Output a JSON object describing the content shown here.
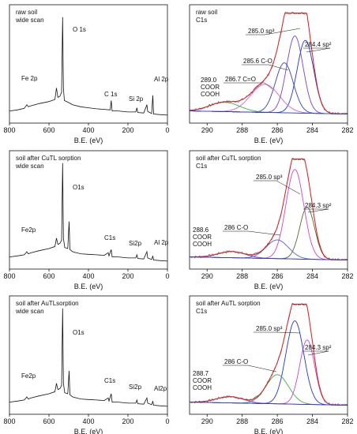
{
  "chart_data": [
    {
      "type": "line",
      "title": [
        "raw soil",
        "wide scan"
      ],
      "xlabel": "B.E. (eV)",
      "xlim": [
        800,
        0
      ],
      "x_ticks": [
        800,
        600,
        400,
        200,
        0
      ],
      "y_ticks": false,
      "annotations": [
        {
          "text": "O 1s",
          "x": 531
        },
        {
          "text": "Fe 2p",
          "x": 710
        },
        {
          "text": "C 1s",
          "x": 285
        },
        {
          "text": "Si 2p",
          "x": 102
        },
        {
          "text": "Al 2p",
          "x": 74
        }
      ],
      "series": [
        {
          "color": "#111111",
          "values": [
            [
              800,
              0.06
            ],
            [
              760,
              0.07
            ],
            [
              725,
              0.085
            ],
            [
              712,
              0.12
            ],
            [
              705,
              0.1
            ],
            [
              690,
              0.11
            ],
            [
              650,
              0.13
            ],
            [
              600,
              0.15
            ],
            [
              570,
              0.17
            ],
            [
              562,
              0.28
            ],
            [
              555,
              0.19
            ],
            [
              545,
              0.2
            ],
            [
              536,
              0.24
            ],
            [
              531,
              0.96
            ],
            [
              527,
              0.28
            ],
            [
              522,
              0.16
            ],
            [
              500,
              0.14
            ],
            [
              480,
              0.12
            ],
            [
              440,
              0.1
            ],
            [
              400,
              0.09
            ],
            [
              360,
              0.08
            ],
            [
              320,
              0.075
            ],
            [
              290,
              0.07
            ],
            [
              285,
              0.16
            ],
            [
              280,
              0.06
            ],
            [
              250,
              0.06
            ],
            [
              200,
              0.05
            ],
            [
              160,
              0.05
            ],
            [
              155,
              0.09
            ],
            [
              150,
              0.045
            ],
            [
              120,
              0.04
            ],
            [
              104,
              0.12
            ],
            [
              100,
              0.055
            ],
            [
              80,
              0.035
            ],
            [
              74,
              0.21
            ],
            [
              70,
              0.03
            ],
            [
              40,
              0.025
            ],
            [
              0,
              0.02
            ]
          ]
        }
      ]
    },
    {
      "type": "line",
      "title": [
        "raw soil",
        "C1s"
      ],
      "xlabel": "B.E. (eV)",
      "xlim": [
        291,
        282
      ],
      "x_ticks": [
        290,
        288,
        286,
        284,
        282
      ],
      "y_ticks": false,
      "annotations": [
        {
          "text": "285.0  sp³",
          "x": 285.0
        },
        {
          "text": "284.4   sp²",
          "x": 284.4
        },
        {
          "text": "285.6  C-O",
          "x": 285.6
        },
        {
          "text": "286.7 C=O",
          "x": 286.7
        },
        {
          "text": [
            "289.0",
            "COOR",
            "COOH"
          ],
          "x": 289.0
        }
      ],
      "series": [
        {
          "name": "peak 284.4",
          "color": "#2233cc",
          "center": 284.4,
          "height": 0.7,
          "fwhm": 1.1
        },
        {
          "name": "peak 285.0",
          "color": "#7a3fd1",
          "center": 285.0,
          "height": 0.74,
          "fwhm": 1.1
        },
        {
          "name": "peak 285.6",
          "color": "#3344aa",
          "center": 285.6,
          "height": 0.48,
          "fwhm": 1.2
        },
        {
          "name": "peak 286.7",
          "color": "#d060d8",
          "center": 286.7,
          "height": 0.27,
          "fwhm": 1.9
        },
        {
          "name": "peak 289.0",
          "color": "#44aa44",
          "center": 289.0,
          "height": 0.09,
          "fwhm": 2.0
        },
        {
          "name": "envelope",
          "color": "#dd2222",
          "envelope": true
        }
      ]
    },
    {
      "type": "line",
      "title": [
        "soil after CuTL sorption",
        "wide scan"
      ],
      "xlabel": "B.E. (eV)",
      "xlim": [
        800,
        0
      ],
      "x_ticks": [
        800,
        600,
        400,
        200,
        0
      ],
      "y_ticks": false,
      "annotations": [
        {
          "text": "O1s",
          "x": 531
        },
        {
          "text": "Fe2p",
          "x": 710
        },
        {
          "text": "C1s",
          "x": 285
        },
        {
          "text": "Si2p",
          "x": 102
        },
        {
          "text": "Al 2p",
          "x": 74
        }
      ],
      "series": [
        {
          "color": "#111111",
          "values": [
            [
              800,
              0.06
            ],
            [
              760,
              0.07
            ],
            [
              725,
              0.08
            ],
            [
              712,
              0.11
            ],
            [
              705,
              0.09
            ],
            [
              690,
              0.1
            ],
            [
              650,
              0.12
            ],
            [
              600,
              0.14
            ],
            [
              570,
              0.16
            ],
            [
              562,
              0.24
            ],
            [
              555,
              0.18
            ],
            [
              545,
              0.19
            ],
            [
              536,
              0.22
            ],
            [
              531,
              0.96
            ],
            [
              527,
              0.24
            ],
            [
              520,
              0.15
            ],
            [
              505,
              0.14
            ],
            [
              498,
              0.4
            ],
            [
              494,
              0.13
            ],
            [
              480,
              0.11
            ],
            [
              440,
              0.09
            ],
            [
              400,
              0.085
            ],
            [
              360,
              0.08
            ],
            [
              320,
              0.075
            ],
            [
              300,
              0.1
            ],
            [
              296,
              0.07
            ],
            [
              285,
              0.13
            ],
            [
              280,
              0.06
            ],
            [
              250,
              0.06
            ],
            [
              200,
              0.05
            ],
            [
              160,
              0.05
            ],
            [
              155,
              0.08
            ],
            [
              150,
              0.045
            ],
            [
              120,
              0.04
            ],
            [
              104,
              0.11
            ],
            [
              100,
              0.05
            ],
            [
              80,
              0.035
            ],
            [
              74,
              0.07
            ],
            [
              70,
              0.03
            ],
            [
              40,
              0.025
            ],
            [
              0,
              0.02
            ]
          ]
        }
      ]
    },
    {
      "type": "line",
      "title": [
        "soil after CuTL sorption",
        "C1s"
      ],
      "xlabel": "B.E. (eV)",
      "xlim": [
        291,
        282
      ],
      "x_ticks": [
        290,
        288,
        286,
        284,
        282
      ],
      "y_ticks": false,
      "annotations": [
        {
          "text": "285.0 sp³",
          "x": 285.0
        },
        {
          "text": "284.3 sp²",
          "x": 284.3
        },
        {
          "text": "286 C-O",
          "x": 286.0
        },
        {
          "text": [
            "288.6",
            "COOR",
            "COOH"
          ],
          "x": 288.6
        }
      ],
      "series": [
        {
          "name": "peak 284.3",
          "color": "#556b2f",
          "center": 284.3,
          "height": 0.5,
          "fwhm": 1.0
        },
        {
          "name": "peak 285.0",
          "color": "#cc44cc",
          "center": 285.0,
          "height": 0.86,
          "fwhm": 1.2
        },
        {
          "name": "peak 286",
          "color": "#5566cc",
          "center": 286.0,
          "height": 0.18,
          "fwhm": 1.5
        },
        {
          "name": "peak 288.6",
          "color": "#7a3fd1",
          "center": 288.6,
          "height": 0.06,
          "fwhm": 1.8
        },
        {
          "name": "envelope",
          "color": "#dd2222",
          "envelope": true
        }
      ]
    },
    {
      "type": "line",
      "title": [
        "soil after AuTLsorption",
        "wide scan"
      ],
      "xlabel": "B.E. (eV)",
      "xlim": [
        800,
        0
      ],
      "x_ticks": [
        800,
        600,
        400,
        200,
        0
      ],
      "y_ticks": false,
      "annotations": [
        {
          "text": "O1s",
          "x": 531
        },
        {
          "text": "Fe2p",
          "x": 710
        },
        {
          "text": "C1s",
          "x": 285
        },
        {
          "text": "Si2p",
          "x": 102
        },
        {
          "text": "Al2p",
          "x": 74
        }
      ],
      "series": [
        {
          "color": "#111111",
          "values": [
            [
              800,
              0.06
            ],
            [
              760,
              0.07
            ],
            [
              725,
              0.08
            ],
            [
              712,
              0.11
            ],
            [
              705,
              0.09
            ],
            [
              690,
              0.1
            ],
            [
              650,
              0.12
            ],
            [
              600,
              0.14
            ],
            [
              570,
              0.16
            ],
            [
              562,
              0.24
            ],
            [
              555,
              0.18
            ],
            [
              545,
              0.19
            ],
            [
              536,
              0.22
            ],
            [
              531,
              0.96
            ],
            [
              527,
              0.24
            ],
            [
              520,
              0.15
            ],
            [
              505,
              0.14
            ],
            [
              498,
              0.36
            ],
            [
              494,
              0.13
            ],
            [
              480,
              0.11
            ],
            [
              440,
              0.09
            ],
            [
              400,
              0.085
            ],
            [
              360,
              0.08
            ],
            [
              320,
              0.075
            ],
            [
              300,
              0.1
            ],
            [
              296,
              0.07
            ],
            [
              285,
              0.14
            ],
            [
              280,
              0.06
            ],
            [
              250,
              0.06
            ],
            [
              200,
              0.05
            ],
            [
              160,
              0.05
            ],
            [
              155,
              0.08
            ],
            [
              150,
              0.045
            ],
            [
              120,
              0.04
            ],
            [
              104,
              0.1
            ],
            [
              100,
              0.05
            ],
            [
              80,
              0.035
            ],
            [
              74,
              0.07
            ],
            [
              70,
              0.03
            ],
            [
              40,
              0.025
            ],
            [
              0,
              0.02
            ]
          ]
        }
      ]
    },
    {
      "type": "line",
      "title": [
        "soil after AuTL sorption",
        "C1s"
      ],
      "xlabel": "B.E. (eV)",
      "xlim": [
        291,
        282
      ],
      "x_ticks": [
        290,
        288,
        286,
        284,
        282
      ],
      "y_ticks": false,
      "annotations": [
        {
          "text": "285.0 sp³",
          "x": 285.0
        },
        {
          "text": "284.3 sp²",
          "x": 284.3
        },
        {
          "text": "286 C-O",
          "x": 286.0
        },
        {
          "text": [
            "288.7",
            "COOR",
            "COOH"
          ],
          "x": 288.7
        }
      ],
      "series": [
        {
          "name": "peak 284.3",
          "color": "#cc44cc",
          "center": 284.3,
          "height": 0.62,
          "fwhm": 1.0
        },
        {
          "name": "peak 285.0",
          "color": "#2233cc",
          "center": 285.0,
          "height": 0.8,
          "fwhm": 1.2
        },
        {
          "name": "peak 286",
          "color": "#44aa44",
          "center": 286.0,
          "height": 0.28,
          "fwhm": 1.5
        },
        {
          "name": "peak 288.7",
          "color": "#7a3fd1",
          "center": 288.7,
          "height": 0.06,
          "fwhm": 1.8
        },
        {
          "name": "envelope",
          "color": "#dd2222",
          "envelope": true
        }
      ]
    }
  ]
}
